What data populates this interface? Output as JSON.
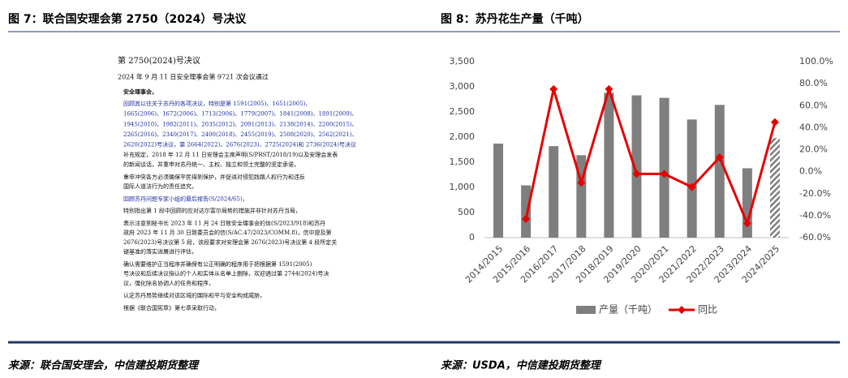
{
  "figure_left": {
    "title": "图 7：联合国安理会第 2750（2024）号决议",
    "source": "来源：联合国安理会，中信建投期货整理",
    "document": {
      "lines": [
        "第 2750(2024)号决议",
        "2024 年 9 月 11 日安全理事会第 9721 次会议通过",
        "安全理事会，",
        "回顾其以往关于苏丹的各项决议，特别是第 1591(2005)、1651(2005)、",
        "1665(2006)、1672(2006)、1713(2006)、1779(2007)、1841(2008)、1891(2009)、",
        "1945(2010)、1982(2011)、2035(2012)、2091(2013)、2138(2014)、2200(2015)、",
        "2265(2016)、2340(2017)、2400(2018)、2455(2019)、2508(2020)、2562(2021)、",
        "2620(2022)号决议，第 2664(2022)、2676(2023)、2725(2024)和 2736(2024)号决议",
        "补充规定，2018 年 12 月 11 日安理会主席声明(S/PRST/2018/19)以及安理会发表",
        "的新闻谈话，并重申对苏丹统一、主权、独立和领土完整的坚定承诺，",
        "重申冲突各方必须确保平民得到保护，并促进对侵犯践踏人权行为和违反",
        "国际人道法行为的责任追究，",
        "回顾苏丹问题专家小组的最后报告(S/2024/65)，",
        "特别指出第 1 段中回顾的应对达尔富尔局势的措施并非针对苏丹当局，",
        "表示注意到秘书长 2023 年 11 月 24 日致安全理事会的信(S/2023/918)和苏丹",
        "政府 2023 年 11 月 30 日致委员会的信(S/AC.47/2023/COMM.8)，信中提及第",
        "2676(2023)号决议第 5 段，该段要求对安理会第 2676(2023)号决议第 4 段所定关",
        "键基准的落实进展进行评估，",
        "确认需要维护正当程序并确保有公正明确的程序用于把根据第 1591(2005)",
        "号决议和后续决议指认的个人和实体从名单上删除，欢迎通过第 2744(2024)号决",
        "议，强化除名协调人的任务和程序，",
        "认定苏丹局势继续对该区域的国际和平与安全构成威胁，",
        "根据《联合国宪章》第七章采取行动，"
      ]
    }
  },
  "chart_data": {
    "type": "bar-line",
    "title": "图 8：苏丹花生产量（千吨）",
    "source": "来源：USDA，中信建投期货整理",
    "categories": [
      "2014/2015",
      "2015/2016",
      "2016/2017",
      "2017/2018",
      "2018/2019",
      "2019/2020",
      "2020/2021",
      "2021/2022",
      "2022/2023",
      "2023/2024",
      "2024/2025"
    ],
    "series": [
      {
        "name": "产量（千吨）",
        "type": "bar",
        "axis": "y",
        "color": "#7f7f7f",
        "values": [
          1870,
          1040,
          1820,
          1640,
          2880,
          2830,
          2780,
          2350,
          2640,
          1380,
          1980
        ],
        "hatched": [
          false,
          false,
          false,
          false,
          false,
          false,
          false,
          false,
          false,
          false,
          true
        ]
      },
      {
        "name": "同比",
        "type": "line",
        "axis": "y2",
        "color": "#e60000",
        "values": [
          null,
          -43,
          75,
          -10,
          75,
          -2,
          -2,
          -14,
          13,
          -47,
          45
        ]
      }
    ],
    "ylim": [
      0,
      3500
    ],
    "yticks": [
      0,
      500,
      {
        "value": 1000,
        "label": "1,000"
      },
      {
        "value": 1500,
        "label": "1,500"
      },
      {
        "value": 2000,
        "label": "2,000"
      },
      {
        "value": 2500,
        "label": "2,500"
      },
      {
        "value": 3000,
        "label": "3,000"
      },
      {
        "value": 3500,
        "label": "3,500"
      }
    ],
    "y2lim": [
      -60,
      100
    ],
    "y2ticks": [
      {
        "value": -60,
        "label": "-60.0%"
      },
      {
        "value": -40,
        "label": "-40.0%"
      },
      {
        "value": -20,
        "label": "-20.0%"
      },
      {
        "value": 0,
        "label": "0.0%"
      },
      {
        "value": 20,
        "label": "20.0%"
      },
      {
        "value": 40,
        "label": "40.0%"
      },
      {
        "value": 60,
        "label": "60.0%"
      },
      {
        "value": 80,
        "label": "80.0%"
      },
      {
        "value": 100,
        "label": "100.0%"
      }
    ],
    "grid": false,
    "legend": "bottom"
  }
}
